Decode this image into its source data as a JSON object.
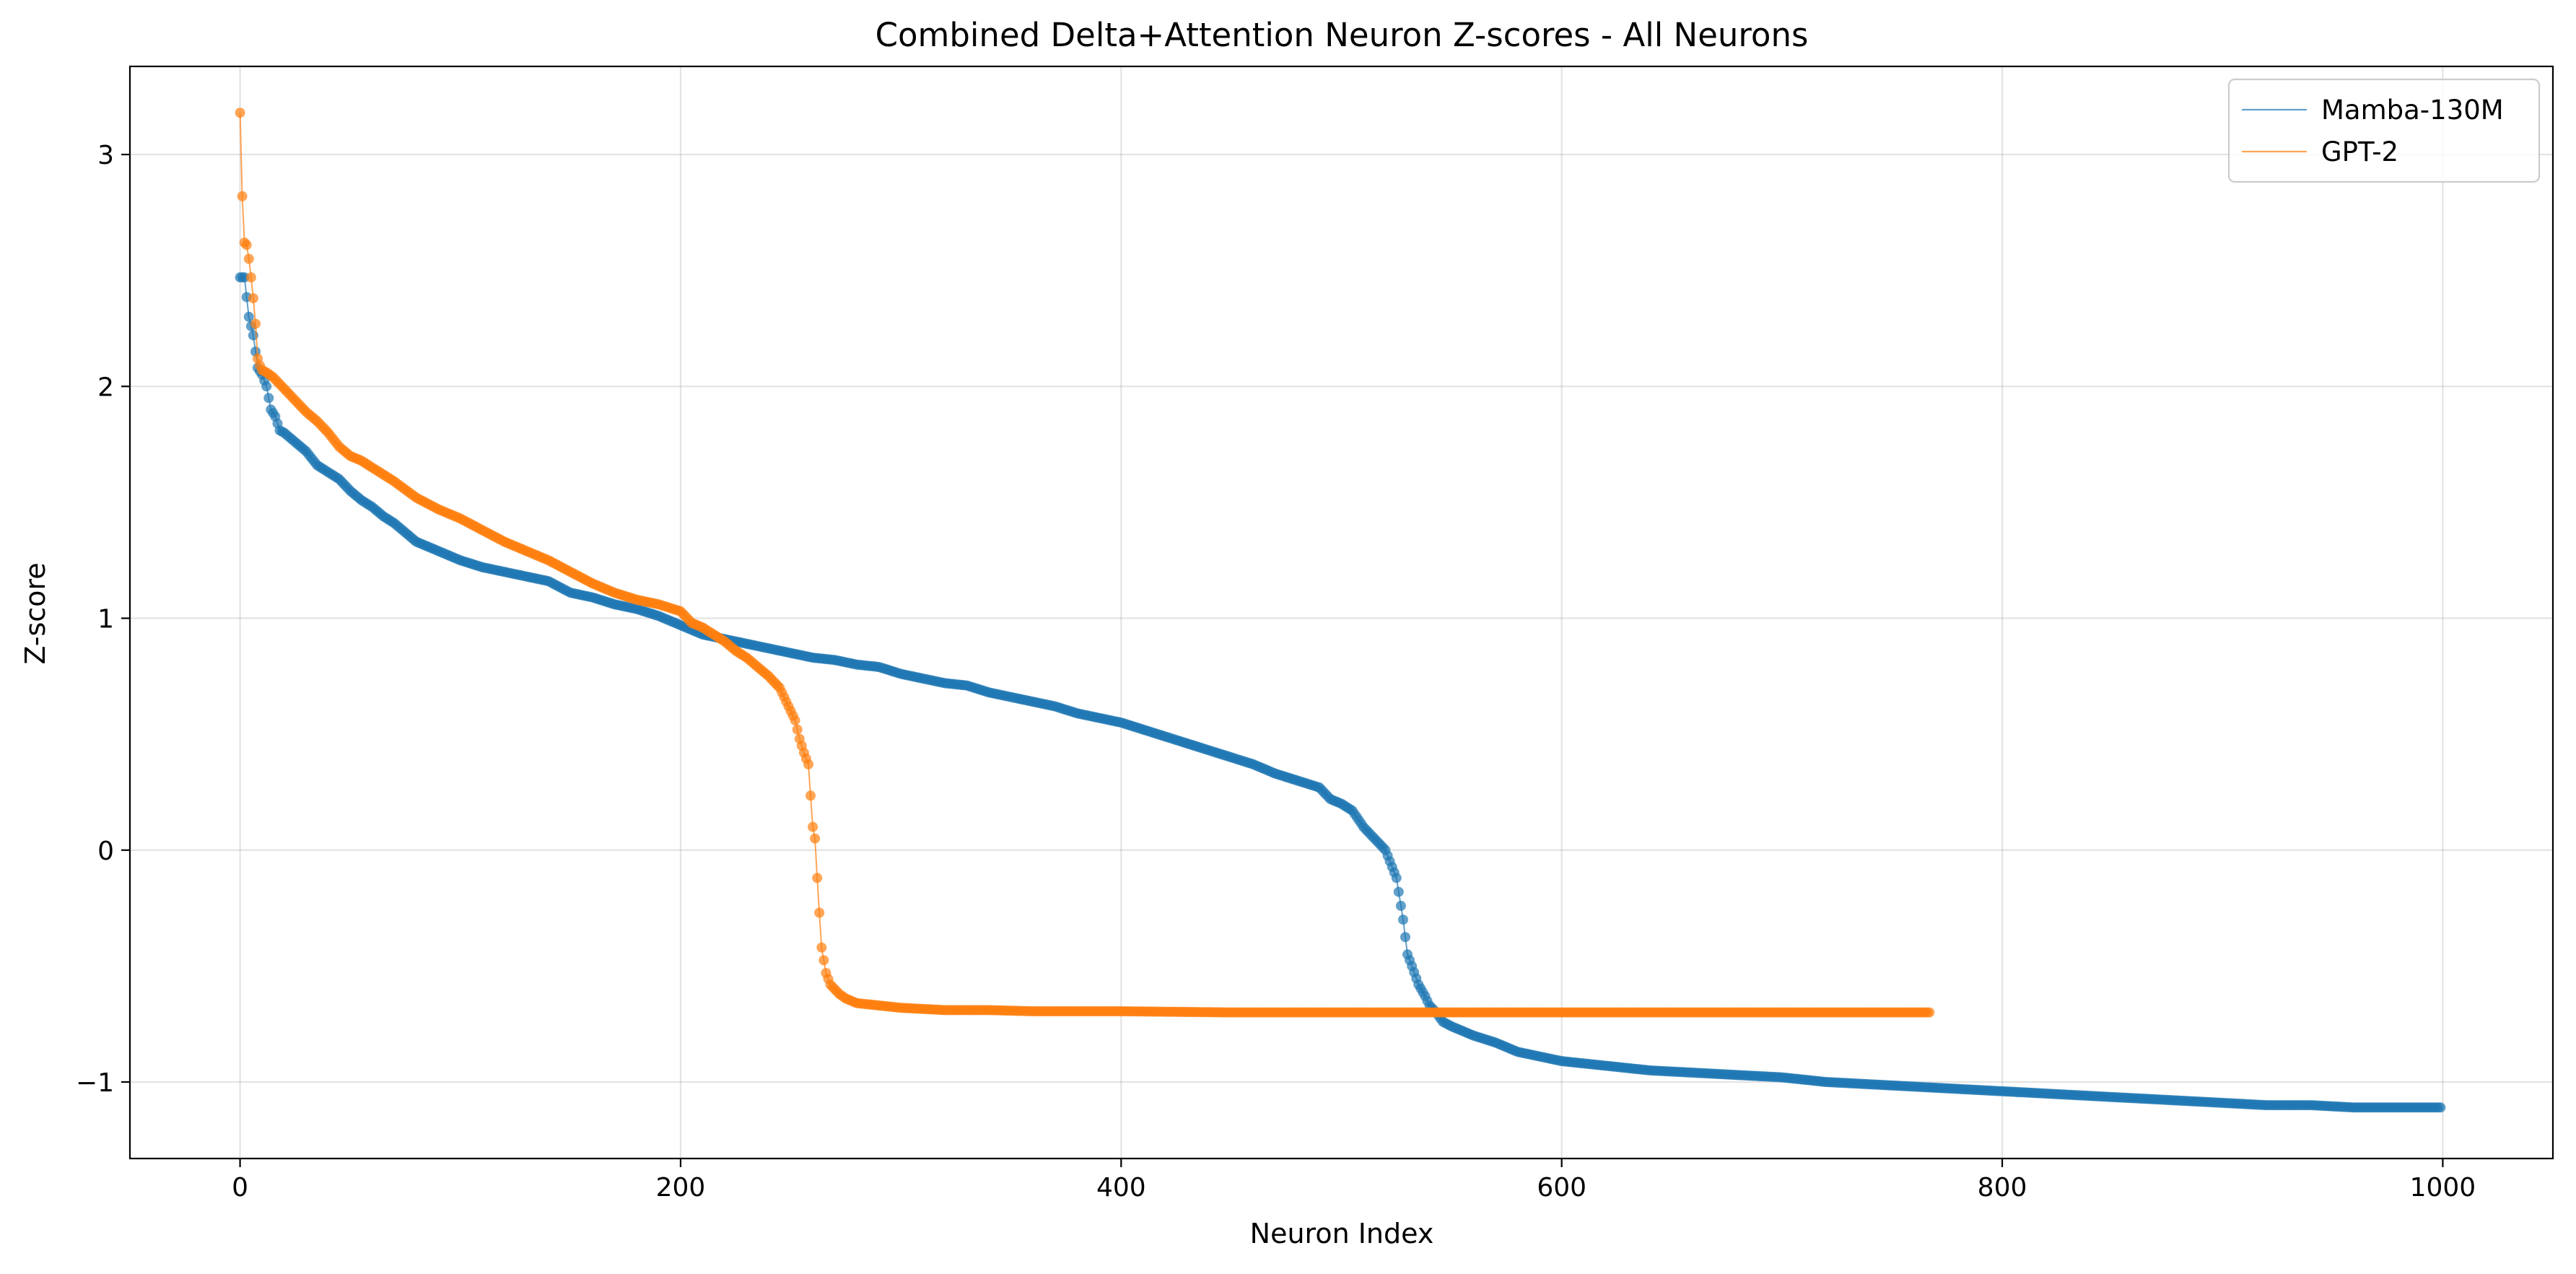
{
  "chart_data": {
    "type": "line",
    "title": "Combined Delta+Attention Neuron Z-scores - All Neurons",
    "xlabel": "Neuron Index",
    "ylabel": "Z-score",
    "xlim": [
      -50,
      1050
    ],
    "ylim": [
      -1.33,
      3.38
    ],
    "x_ticks": [
      0,
      200,
      400,
      600,
      800,
      1000
    ],
    "x_tick_labels": [
      "0",
      "200",
      "400",
      "600",
      "800",
      "1000"
    ],
    "y_ticks": [
      -1,
      0,
      1,
      2,
      3
    ],
    "y_tick_labels": [
      "−1",
      "0",
      "1",
      "2",
      "3"
    ],
    "grid": true,
    "legend_position": "top-right",
    "markers": true,
    "series": [
      {
        "name": "Mamba-130M",
        "color": "#1f77b4",
        "n_points": 1000,
        "x": [
          0,
          2,
          4,
          6,
          8,
          10,
          12,
          14,
          16,
          18,
          20,
          25,
          30,
          35,
          40,
          45,
          50,
          55,
          60,
          65,
          70,
          75,
          80,
          90,
          100,
          110,
          120,
          130,
          140,
          150,
          160,
          170,
          180,
          190,
          200,
          210,
          220,
          230,
          240,
          250,
          260,
          270,
          280,
          290,
          300,
          310,
          320,
          330,
          340,
          350,
          360,
          370,
          380,
          390,
          400,
          410,
          420,
          430,
          440,
          450,
          460,
          470,
          480,
          490,
          495,
          500,
          505,
          510,
          515,
          520,
          525,
          528,
          530,
          532,
          535,
          538,
          540,
          543,
          546,
          550,
          555,
          560,
          570,
          580,
          590,
          600,
          620,
          640,
          660,
          680,
          700,
          720,
          740,
          760,
          780,
          800,
          820,
          840,
          860,
          880,
          900,
          920,
          940,
          960,
          980,
          999
        ],
        "values": [
          2.47,
          2.47,
          2.3,
          2.22,
          2.08,
          2.05,
          2.0,
          1.9,
          1.87,
          1.81,
          1.8,
          1.76,
          1.72,
          1.66,
          1.63,
          1.6,
          1.55,
          1.51,
          1.48,
          1.44,
          1.41,
          1.37,
          1.33,
          1.29,
          1.25,
          1.22,
          1.2,
          1.18,
          1.16,
          1.11,
          1.09,
          1.06,
          1.04,
          1.01,
          0.97,
          0.93,
          0.91,
          0.89,
          0.87,
          0.85,
          0.83,
          0.82,
          0.8,
          0.79,
          0.76,
          0.74,
          0.72,
          0.71,
          0.68,
          0.66,
          0.64,
          0.62,
          0.59,
          0.57,
          0.55,
          0.52,
          0.49,
          0.46,
          0.43,
          0.4,
          0.37,
          0.33,
          0.3,
          0.27,
          0.22,
          0.2,
          0.17,
          0.1,
          0.05,
          0.0,
          -0.12,
          -0.3,
          -0.45,
          -0.5,
          -0.58,
          -0.63,
          -0.67,
          -0.7,
          -0.74,
          -0.76,
          -0.78,
          -0.8,
          -0.83,
          -0.87,
          -0.89,
          -0.91,
          -0.93,
          -0.95,
          -0.96,
          -0.97,
          -0.98,
          -1.0,
          -1.01,
          -1.02,
          -1.03,
          -1.04,
          -1.05,
          -1.06,
          -1.07,
          -1.08,
          -1.09,
          -1.1,
          -1.1,
          -1.11,
          -1.11,
          -1.11
        ]
      },
      {
        "name": "GPT-2",
        "color": "#ff7f0e",
        "n_points": 768,
        "x": [
          0,
          1,
          2,
          3,
          4,
          5,
          6,
          7,
          8,
          9,
          10,
          12,
          15,
          18,
          20,
          25,
          30,
          35,
          40,
          45,
          50,
          55,
          60,
          70,
          80,
          90,
          100,
          110,
          120,
          130,
          140,
          150,
          160,
          170,
          180,
          190,
          200,
          205,
          210,
          215,
          220,
          225,
          230,
          235,
          240,
          245,
          248,
          250,
          252,
          254,
          256,
          258,
          260,
          261,
          262,
          263,
          264,
          266,
          268,
          270,
          272,
          275,
          280,
          290,
          300,
          320,
          340,
          360,
          380,
          400,
          450,
          500,
          550,
          600,
          650,
          700,
          767
        ],
        "values": [
          3.18,
          2.82,
          2.62,
          2.61,
          2.55,
          2.47,
          2.38,
          2.27,
          2.12,
          2.09,
          2.07,
          2.06,
          2.04,
          2.01,
          1.99,
          1.94,
          1.89,
          1.85,
          1.8,
          1.74,
          1.7,
          1.68,
          1.65,
          1.59,
          1.52,
          1.47,
          1.43,
          1.38,
          1.33,
          1.29,
          1.25,
          1.2,
          1.15,
          1.11,
          1.08,
          1.06,
          1.03,
          0.98,
          0.96,
          0.93,
          0.9,
          0.86,
          0.83,
          0.79,
          0.75,
          0.7,
          0.64,
          0.6,
          0.56,
          0.48,
          0.42,
          0.37,
          0.1,
          0.05,
          -0.12,
          -0.27,
          -0.42,
          -0.53,
          -0.58,
          -0.6,
          -0.62,
          -0.64,
          -0.66,
          -0.67,
          -0.68,
          -0.69,
          -0.69,
          -0.695,
          -0.695,
          -0.695,
          -0.7,
          -0.7,
          -0.7,
          -0.7,
          -0.7,
          -0.7,
          -0.7
        ]
      }
    ]
  }
}
